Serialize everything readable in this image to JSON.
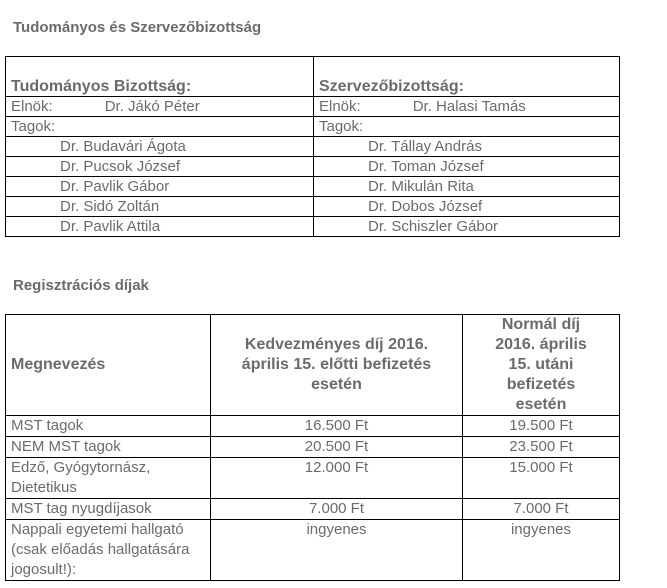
{
  "committee": {
    "title": "Tudományos és Szervezőbizottság",
    "scientific": {
      "heading": "Tudományos Bizottság:",
      "chair_label": "Elnök:",
      "chair": "Dr. Jákó Péter",
      "members_label": "Tagok:",
      "members": [
        "Dr. Budavári Ágota",
        "Dr. Pucsok József",
        "Dr. Pavlik Gábor",
        "Dr. Sidó Zoltán",
        "Dr. Pavlik Attila"
      ]
    },
    "organizing": {
      "heading": "Szervezőbizottság:",
      "chair_label": "Elnök:",
      "chair": "Dr. Halasi Tamás",
      "members_label": "Tagok:",
      "members": [
        "Dr. Tállay András",
        "Dr. Toman József",
        "Dr. Mikulán Rita",
        "Dr. Dobos József",
        "Dr. Schiszler Gábor"
      ]
    }
  },
  "fees": {
    "title": "Regisztrációs díjak",
    "headers": [
      "Megnevezés",
      "Kedvezményes díj 2016. április 15. előtti befizetés esetén",
      "Normál díj 2016. április 15. utáni befizetés esetén"
    ],
    "rows": [
      {
        "name": "MST tagok",
        "early": "16.500 Ft",
        "normal": "19.500 Ft"
      },
      {
        "name": "NEM MST tagok",
        "early": "20.500 Ft",
        "normal": "23.500 Ft"
      },
      {
        "name": "Edző, Gyógytornász, Dietetikus",
        "early": "12.000 Ft",
        "normal": "15.000 Ft"
      },
      {
        "name": "MST tag nyugdíjasok",
        "early": "7.000 Ft",
        "normal": "7.000 Ft"
      },
      {
        "name": "Nappali egyetemi hallgató (csak előadás hallgatására jogosult!):",
        "early": "ingyenes",
        "normal": "ingyenes"
      }
    ]
  }
}
